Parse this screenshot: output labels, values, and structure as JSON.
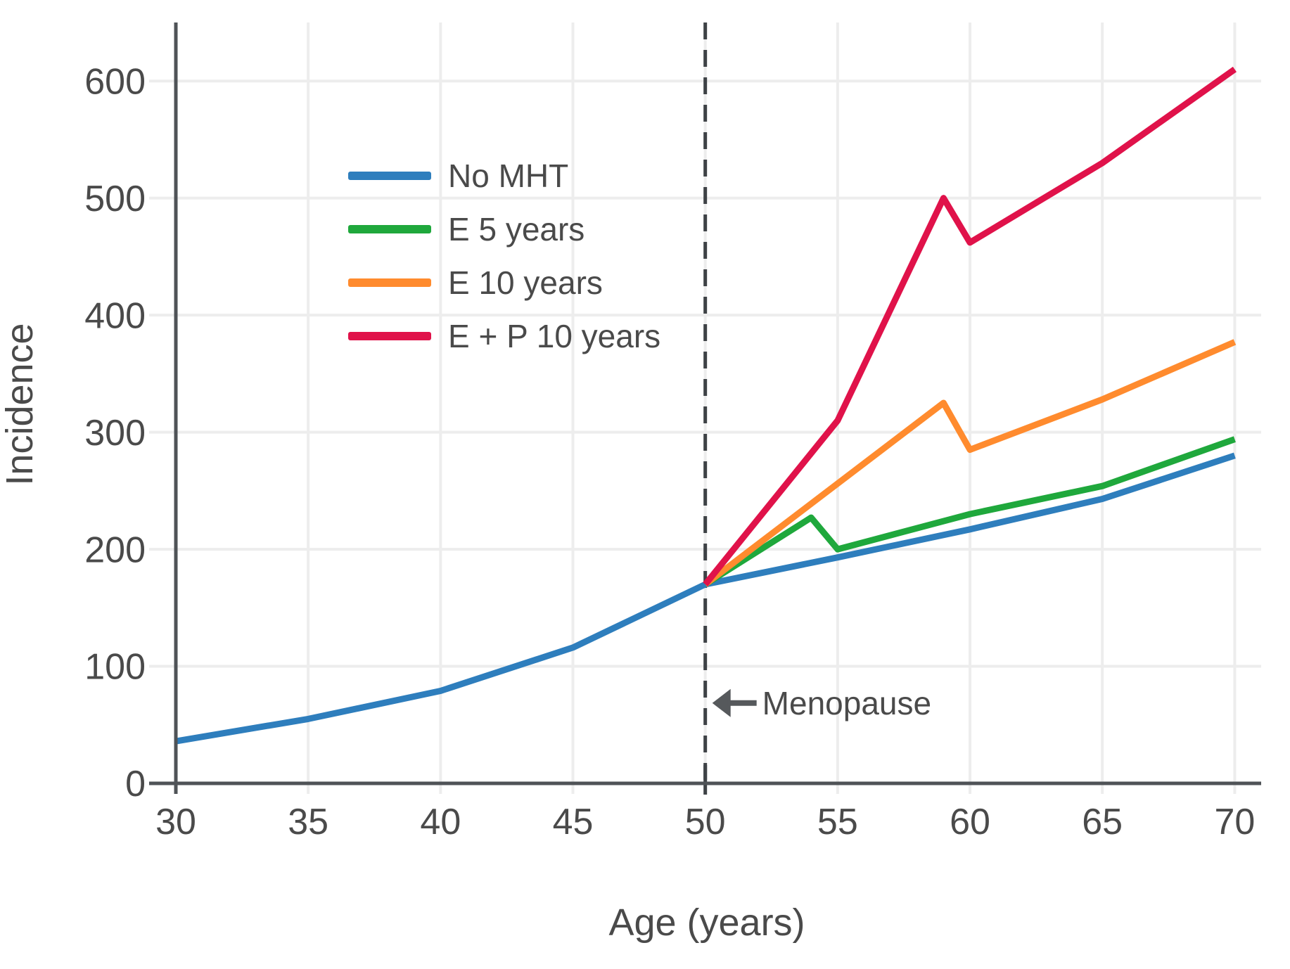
{
  "chart_data": {
    "type": "line",
    "title": "",
    "xlabel": "Age (years)",
    "ylabel": "Incidence",
    "xlim": [
      30,
      71
    ],
    "ylim": [
      0,
      650
    ],
    "x_ticks": [
      30,
      35,
      40,
      45,
      50,
      55,
      60,
      65,
      70
    ],
    "y_ticks": [
      0,
      100,
      200,
      300,
      400,
      500,
      600
    ],
    "grid": true,
    "legend_position": "upper-left-inside",
    "series": [
      {
        "name": "No MHT",
        "color": "#2e7ebd",
        "x": [
          30,
          35,
          40,
          45,
          50,
          55,
          60,
          65,
          70
        ],
        "y": [
          36,
          55,
          79,
          116,
          170,
          193,
          217,
          243,
          280
        ]
      },
      {
        "name": "E 5 years",
        "color": "#1fa83c",
        "x": [
          50,
          54,
          55,
          60,
          65,
          70
        ],
        "y": [
          170,
          227,
          200,
          230,
          254,
          294
        ]
      },
      {
        "name": "E 10 years",
        "color": "#ff8b2e",
        "x": [
          50,
          59,
          60,
          65,
          70
        ],
        "y": [
          170,
          325,
          285,
          328,
          377
        ]
      },
      {
        "name": "E + P 10 years",
        "color": "#e0124a",
        "x": [
          50,
          55,
          59,
          60,
          65,
          70
        ],
        "y": [
          170,
          310,
          500,
          462,
          530,
          610
        ]
      }
    ],
    "annotations": [
      {
        "type": "vline",
        "x": 50,
        "style": "dashed"
      },
      {
        "type": "arrow-label",
        "text": "Menopause",
        "x": 50,
        "y": 50,
        "direction": "left"
      }
    ]
  },
  "theme": {
    "background": "#ffffff",
    "text": "#4a4a4a",
    "axis": "#4f5357",
    "grid": "#ededed",
    "dashed_line": "#3e4246",
    "arrow": "#56595c"
  }
}
